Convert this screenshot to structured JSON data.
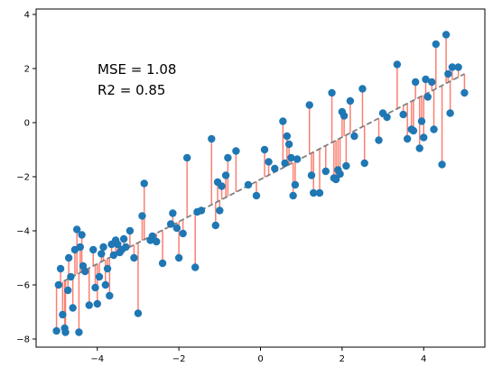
{
  "chart_data": {
    "type": "scatter",
    "title": "",
    "xlabel": "",
    "ylabel": "",
    "xlim": [
      -5.5,
      5.5
    ],
    "ylim": [
      -8.3,
      4.2
    ],
    "x_ticks": [
      -4,
      -2,
      0,
      2,
      4
    ],
    "y_ticks": [
      -8,
      -6,
      -4,
      -2,
      0,
      2,
      4
    ],
    "x_tick_labels": [
      "−4",
      "−2",
      "0",
      "2",
      "4"
    ],
    "y_tick_labels": [
      "−8",
      "−6",
      "−4",
      "−2",
      "0",
      "2",
      "4"
    ],
    "grid": false,
    "annotations": [
      "MSE = 1.08",
      "R2 = 0.85"
    ],
    "colors": {
      "points": "#1f77b4",
      "residuals": "#fa8072",
      "fit_line": "#808080"
    },
    "fit_line": {
      "x": [
        -5,
        5
      ],
      "y": [
        -6.0,
        1.8
      ]
    },
    "points": {
      "x": [
        -5.0,
        -4.95,
        -4.9,
        -4.85,
        -4.8,
        -4.78,
        -4.72,
        -4.7,
        -4.65,
        -4.6,
        -4.55,
        -4.5,
        -4.45,
        -4.42,
        -4.38,
        -4.35,
        -4.3,
        -4.2,
        -4.1,
        -4.05,
        -4.0,
        -3.95,
        -3.9,
        -3.85,
        -3.8,
        -3.75,
        -3.7,
        -3.65,
        -3.6,
        -3.55,
        -3.5,
        -3.45,
        -3.4,
        -3.35,
        -3.3,
        -3.2,
        -3.1,
        -3.0,
        -2.9,
        -2.85,
        -2.7,
        -2.65,
        -2.55,
        -2.4,
        -2.2,
        -2.15,
        -2.05,
        -2.0,
        -1.9,
        -1.8,
        -1.6,
        -1.55,
        -1.45,
        -1.2,
        -1.1,
        -1.05,
        -1.0,
        -0.95,
        -0.85,
        -0.8,
        -0.6,
        -0.3,
        -0.1,
        0.1,
        0.2,
        0.35,
        0.55,
        0.6,
        0.65,
        0.7,
        0.75,
        0.8,
        0.85,
        0.9,
        1.2,
        1.25,
        1.3,
        1.45,
        1.6,
        1.75,
        1.8,
        1.85,
        1.9,
        1.95,
        2.0,
        2.05,
        2.1,
        2.2,
        2.3,
        2.5,
        2.55,
        2.9,
        3.0,
        3.1,
        3.35,
        3.5,
        3.6,
        3.7,
        3.75,
        3.8,
        3.9,
        3.95,
        4.0,
        4.05,
        4.1,
        4.2,
        4.25,
        4.3,
        4.45,
        4.55,
        4.6,
        4.65,
        4.7,
        4.85,
        5.0
      ],
      "y": [
        -7.7,
        -6.0,
        -5.4,
        -7.1,
        -7.6,
        -7.75,
        -6.2,
        -5.0,
        -5.7,
        -6.85,
        -4.7,
        -3.95,
        -7.75,
        -4.6,
        -4.15,
        -5.3,
        -5.5,
        -6.75,
        -4.7,
        -6.1,
        -6.7,
        -5.7,
        -4.85,
        -4.6,
        -6.0,
        -5.4,
        -6.4,
        -4.5,
        -4.9,
        -4.35,
        -4.5,
        -4.8,
        -4.7,
        -4.3,
        -4.6,
        -4.0,
        -5.0,
        -7.05,
        -3.45,
        -2.25,
        -4.35,
        -4.2,
        -4.4,
        -5.2,
        -3.75,
        -3.35,
        -3.9,
        -5.0,
        -4.1,
        -1.3,
        -5.35,
        -3.3,
        -3.25,
        -0.6,
        -3.8,
        -2.2,
        -3.25,
        -2.35,
        -1.95,
        -1.3,
        -1.05,
        -2.3,
        -2.7,
        -1.0,
        -1.45,
        -1.7,
        0.05,
        -1.5,
        -0.5,
        -0.8,
        -1.3,
        -2.7,
        -2.3,
        -1.35,
        0.65,
        -1.95,
        -2.6,
        -2.6,
        -1.8,
        1.1,
        -2.05,
        -2.1,
        -1.75,
        -1.9,
        0.4,
        0.25,
        -1.6,
        0.8,
        -0.5,
        1.25,
        -1.5,
        -0.65,
        0.35,
        0.2,
        2.15,
        0.3,
        -0.6,
        -0.25,
        -0.3,
        1.5,
        -0.95,
        0.05,
        -0.55,
        1.6,
        0.95,
        1.5,
        -0.25,
        2.9,
        -1.55,
        3.25,
        1.8,
        0.35,
        2.05,
        2.05,
        1.1
      ]
    }
  }
}
